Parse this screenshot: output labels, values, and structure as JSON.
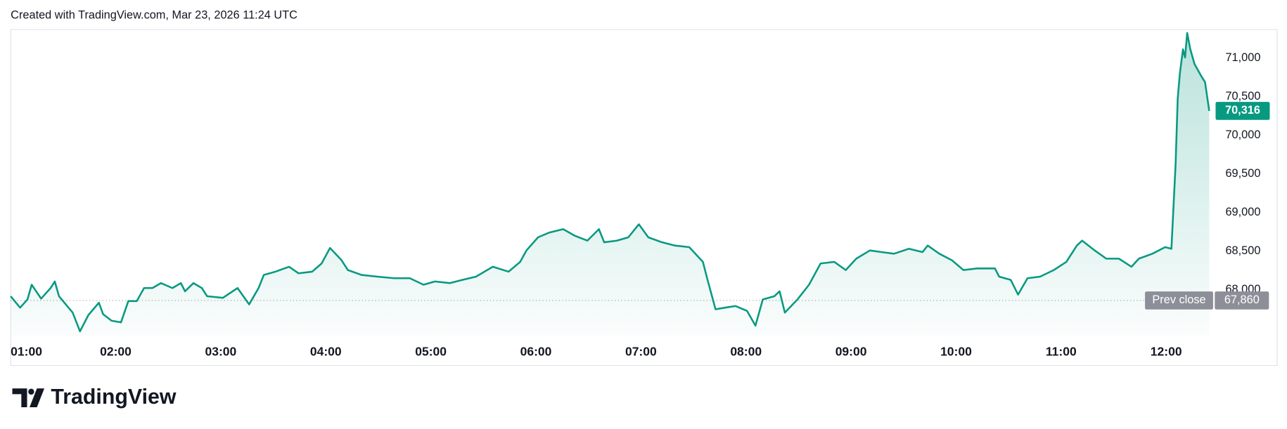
{
  "chart_data": {
    "type": "area",
    "caption": "Created with TradingView.com, Mar 23, 2026 11:24 UTC",
    "brand": "TradingView",
    "color": "#089981",
    "grid": false,
    "x": [
      1.0,
      1.09,
      1.16,
      1.2,
      1.29,
      1.38,
      1.42,
      1.46,
      1.59,
      1.66,
      1.74,
      1.84,
      1.88,
      1.96,
      2.05,
      2.12,
      2.2,
      2.27,
      2.35,
      2.43,
      2.54,
      2.62,
      2.66,
      2.74,
      2.82,
      2.87,
      3.02,
      3.16,
      3.27,
      3.36,
      3.41,
      3.52,
      3.65,
      3.74,
      3.87,
      3.96,
      4.04,
      4.15,
      4.21,
      4.34,
      4.49,
      4.65,
      4.8,
      4.93,
      5.04,
      5.18,
      5.3,
      5.43,
      5.59,
      5.74,
      5.85,
      5.91,
      6.02,
      6.13,
      6.26,
      6.37,
      6.49,
      6.6,
      6.65,
      6.77,
      6.88,
      6.98,
      7.07,
      7.2,
      7.32,
      7.46,
      7.59,
      7.63,
      7.71,
      7.8,
      7.9,
      8.01,
      8.09,
      8.16,
      8.27,
      8.32,
      8.37,
      8.49,
      8.6,
      8.71,
      8.84,
      8.95,
      9.05,
      9.18,
      9.29,
      9.41,
      9.55,
      9.68,
      9.73,
      9.84,
      9.96,
      10.07,
      10.2,
      10.37,
      10.41,
      10.52,
      10.59,
      10.68,
      10.8,
      10.93,
      11.05,
      11.15,
      11.2,
      11.32,
      11.43,
      11.55,
      11.67,
      11.74,
      11.87,
      11.99,
      12.05,
      12.09,
      12.11,
      12.13,
      12.16,
      12.18,
      12.2,
      12.23,
      12.27,
      12.34,
      12.37,
      12.41
    ],
    "values": [
      67915,
      67767,
      67873,
      68064,
      67884,
      68021,
      68106,
      67915,
      67703,
      67460,
      67672,
      67831,
      67682,
      67598,
      67576,
      67852,
      67852,
      68021,
      68021,
      68085,
      68021,
      68085,
      67979,
      68085,
      68021,
      67915,
      67894,
      68021,
      67809,
      68021,
      68191,
      68233,
      68297,
      68212,
      68233,
      68339,
      68540,
      68381,
      68254,
      68191,
      68169,
      68148,
      68148,
      68064,
      68106,
      68085,
      68127,
      68169,
      68297,
      68233,
      68360,
      68508,
      68678,
      68741,
      68784,
      68699,
      68635,
      68784,
      68614,
      68635,
      68678,
      68847,
      68678,
      68614,
      68572,
      68551,
      68360,
      68148,
      67746,
      67767,
      67788,
      67725,
      67534,
      67873,
      67915,
      67979,
      67703,
      67873,
      68064,
      68339,
      68360,
      68254,
      68402,
      68508,
      68487,
      68466,
      68530,
      68487,
      68572,
      68466,
      68381,
      68254,
      68275,
      68275,
      68169,
      68127,
      67936,
      68148,
      68169,
      68254,
      68360,
      68572,
      68635,
      68508,
      68402,
      68402,
      68297,
      68402,
      68466,
      68551,
      68530,
      69631,
      70478,
      70796,
      71113,
      71008,
      71325,
      71113,
      70922,
      70753,
      70690,
      70316
    ],
    "xlim": [
      1,
      13.08
    ],
    "xticks": [
      {
        "value": 1,
        "label": "01:00"
      },
      {
        "value": 2,
        "label": "02:00"
      },
      {
        "value": 3,
        "label": "03:00"
      },
      {
        "value": 4,
        "label": "04:00"
      },
      {
        "value": 5,
        "label": "05:00"
      },
      {
        "value": 6,
        "label": "06:00"
      },
      {
        "value": 7,
        "label": "07:00"
      },
      {
        "value": 8,
        "label": "08:00"
      },
      {
        "value": 9,
        "label": "09:00"
      },
      {
        "value": 10,
        "label": "10:00"
      },
      {
        "value": 11,
        "label": "11:00"
      },
      {
        "value": 12,
        "label": "12:00"
      }
    ],
    "ylim": [
      67400,
      71370
    ],
    "yticks": [
      {
        "value": 68000,
        "label": "68,000"
      },
      {
        "value": 68500,
        "label": "68,500"
      },
      {
        "value": 69000,
        "label": "69,000"
      },
      {
        "value": 69500,
        "label": "69,500"
      },
      {
        "value": 70000,
        "label": "70,000"
      },
      {
        "value": 70500,
        "label": "70,500"
      },
      {
        "value": 71000,
        "label": "71,000"
      }
    ],
    "last_price": {
      "value": 70316,
      "label": "70,316"
    },
    "prev_close": {
      "text": "Prev close",
      "value": 67860,
      "label": "67,860"
    }
  }
}
